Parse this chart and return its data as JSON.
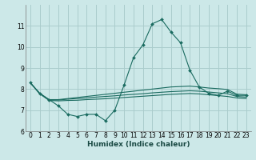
{
  "title": "",
  "xlabel": "Humidex (Indice chaleur)",
  "ylabel": "",
  "background_color": "#cce8e8",
  "grid_color": "#aacccc",
  "line_color": "#1a6b60",
  "x_values": [
    0,
    1,
    2,
    3,
    4,
    5,
    6,
    7,
    8,
    9,
    10,
    11,
    12,
    13,
    14,
    15,
    16,
    17,
    18,
    19,
    20,
    21,
    22,
    23
  ],
  "series": [
    [
      8.3,
      7.8,
      7.5,
      7.2,
      6.8,
      6.7,
      6.8,
      6.8,
      6.5,
      7.0,
      8.2,
      9.5,
      10.1,
      11.1,
      11.3,
      10.7,
      10.2,
      8.9,
      8.1,
      7.8,
      7.7,
      7.9,
      7.7,
      7.7
    ],
    [
      8.3,
      7.8,
      7.5,
      7.5,
      7.55,
      7.6,
      7.65,
      7.7,
      7.75,
      7.8,
      7.85,
      7.9,
      7.95,
      8.0,
      8.05,
      8.1,
      8.12,
      8.14,
      8.1,
      8.05,
      8.02,
      7.98,
      7.76,
      7.73
    ],
    [
      8.3,
      7.78,
      7.48,
      7.48,
      7.52,
      7.55,
      7.58,
      7.62,
      7.65,
      7.68,
      7.72,
      7.75,
      7.78,
      7.82,
      7.85,
      7.88,
      7.9,
      7.92,
      7.9,
      7.86,
      7.82,
      7.78,
      7.65,
      7.62
    ],
    [
      8.3,
      7.78,
      7.46,
      7.44,
      7.46,
      7.47,
      7.5,
      7.52,
      7.54,
      7.57,
      7.6,
      7.63,
      7.66,
      7.69,
      7.72,
      7.75,
      7.77,
      7.79,
      7.77,
      7.73,
      7.69,
      7.65,
      7.58,
      7.55
    ]
  ],
  "ylim": [
    6,
    12
  ],
  "xlim": [
    -0.5,
    23.5
  ],
  "yticks": [
    6,
    7,
    8,
    9,
    10,
    11
  ],
  "xticks": [
    0,
    1,
    2,
    3,
    4,
    5,
    6,
    7,
    8,
    9,
    10,
    11,
    12,
    13,
    14,
    15,
    16,
    17,
    18,
    19,
    20,
    21,
    22,
    23
  ],
  "marker": "D",
  "markersize": 2.0,
  "linewidth": 0.8,
  "fontsize_xlabel": 6.5,
  "fontsize_tick": 5.5
}
